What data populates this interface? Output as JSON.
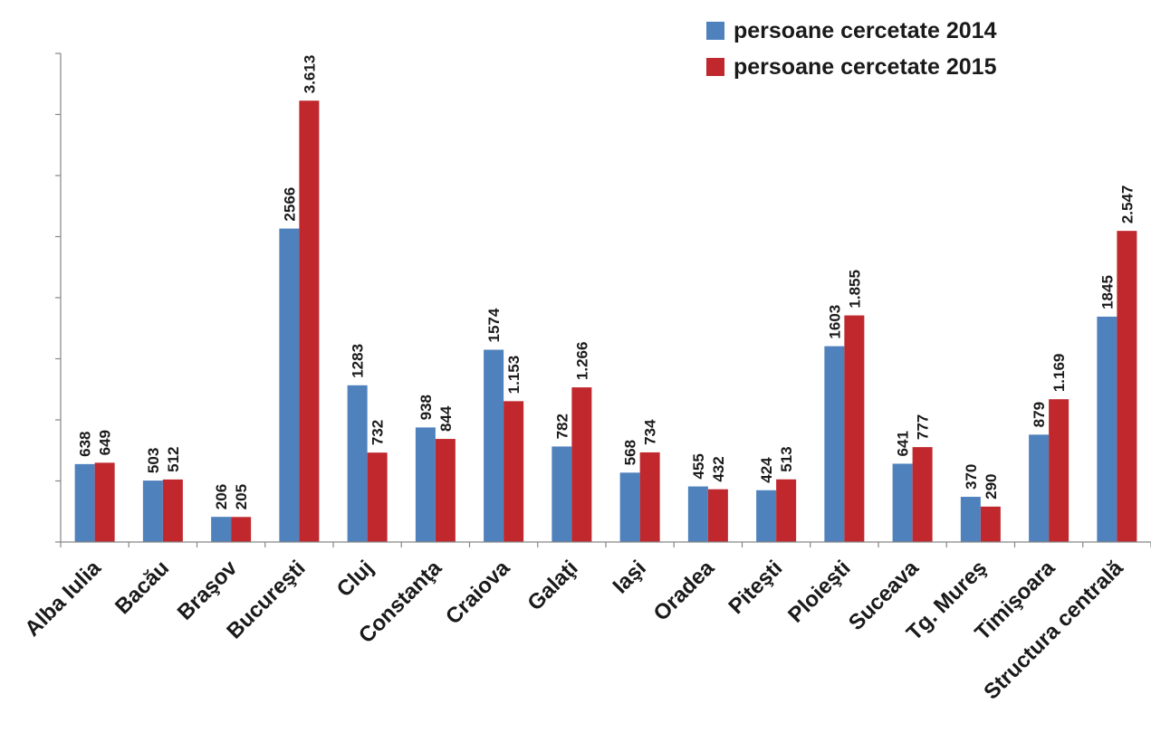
{
  "chart_data": {
    "type": "bar",
    "title": "",
    "xlabel": "",
    "ylabel": "",
    "ylim": [
      0,
      4000
    ],
    "grid": false,
    "legend_position": "top-right",
    "categories": [
      "Alba Iulia",
      "Bacău",
      "Braşov",
      "Bucureşti",
      "Cluj",
      "Constanţa",
      "Craiova",
      "Galaţi",
      "Iaşi",
      "Oradea",
      "Piteşti",
      "Ploieşti",
      "Suceava",
      "Tg. Mureş",
      "Timişoara",
      "Structura centrală"
    ],
    "series": [
      {
        "name": "persoane cercetate 2014",
        "color": "#4f81bd",
        "values": [
          638,
          503,
          206,
          2566,
          1283,
          938,
          1574,
          782,
          568,
          455,
          424,
          1603,
          641,
          370,
          879,
          1845
        ],
        "labels": [
          "638",
          "503",
          "206",
          "2566",
          "1283",
          "938",
          "1574",
          "782",
          "568",
          "455",
          "424",
          "1603",
          "641",
          "370",
          "879",
          "1845"
        ]
      },
      {
        "name": "persoane cercetate 2015",
        "color": "#c0282d",
        "values": [
          649,
          512,
          205,
          3613,
          732,
          844,
          1153,
          1266,
          734,
          432,
          513,
          1855,
          777,
          290,
          1169,
          2547
        ],
        "labels": [
          "649",
          "512",
          "205",
          "3.613",
          "732",
          "844",
          "1.153",
          "1.266",
          "734",
          "432",
          "513",
          "1.855",
          "777",
          "290",
          "1.169",
          "2.547"
        ]
      }
    ]
  }
}
